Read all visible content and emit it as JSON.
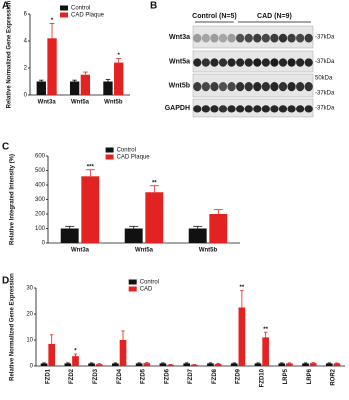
{
  "chart_data": [
    {
      "type": "bar",
      "panel_label": "A",
      "ylabel": "Relative Normalized Gene Expression",
      "categories": [
        "Wnt3a",
        "Wnt5a",
        "Wnt5b"
      ],
      "series": [
        {
          "name": "Control",
          "color": "#111111",
          "values": [
            1,
            1,
            1
          ],
          "errors": [
            0.1,
            0.1,
            0.15
          ],
          "annotations": [
            null,
            null,
            null
          ]
        },
        {
          "name": "CAD Plaque",
          "color": "#e32222",
          "values": [
            4.2,
            1.5,
            2.4
          ],
          "errors": [
            1.1,
            0.2,
            0.3
          ],
          "annotations": [
            "*",
            null,
            "*"
          ]
        }
      ],
      "ylim": [
        0,
        6
      ],
      "yticks": [
        0,
        2,
        4,
        6
      ],
      "legend": "upper center"
    },
    {
      "type": "bar",
      "panel_label": "C",
      "ylabel": "Relative Integrated Intensity (%)",
      "categories": [
        "Wnt3a",
        "Wnt5a",
        "Wnt5b"
      ],
      "series": [
        {
          "name": "Control",
          "color": "#111111",
          "values": [
            100,
            100,
            100
          ],
          "errors": [
            15,
            15,
            15
          ],
          "annotations": [
            null,
            null,
            null
          ]
        },
        {
          "name": "CAD Plaque",
          "color": "#e32222",
          "values": [
            460,
            350,
            200
          ],
          "errors": [
            45,
            45,
            30
          ],
          "annotations": [
            "***",
            "**",
            null
          ]
        }
      ],
      "ylim": [
        0,
        600
      ],
      "yticks": [
        0,
        100,
        200,
        300,
        400,
        500,
        600
      ],
      "legend": "upper center"
    },
    {
      "type": "bar",
      "panel_label": "D",
      "ylabel": "Relative Normalized Gene Expression",
      "categories": [
        "FZD1",
        "FZD2",
        "FZD3",
        "FZD4",
        "FZD5",
        "FZD6",
        "FZD7",
        "FZD8",
        "FZD9",
        "FZD10",
        "LRP5",
        "LRP6",
        "ROR2"
      ],
      "series": [
        {
          "name": "Control",
          "color": "#111111",
          "values": [
            1,
            1,
            1,
            1,
            1,
            1,
            1,
            1,
            1,
            1,
            1,
            1,
            1
          ],
          "errors": [
            0.2,
            0.2,
            0.2,
            0.2,
            0.2,
            0.2,
            0.2,
            0.2,
            0.2,
            0.2,
            0.2,
            0.2,
            0.2
          ],
          "annotations": [
            null,
            null,
            null,
            null,
            null,
            null,
            null,
            null,
            null,
            null,
            null,
            null,
            null
          ]
        },
        {
          "name": "CAD",
          "color": "#e32222",
          "values": [
            8.5,
            3.8,
            0.7,
            10,
            1.1,
            0.5,
            0.5,
            0.8,
            22.5,
            11,
            1,
            1.1,
            1
          ],
          "errors": [
            3.5,
            0.8,
            0.2,
            3.5,
            0.3,
            0.1,
            0.1,
            0.2,
            6.5,
            2,
            0.2,
            0.2,
            0.2
          ],
          "annotations": [
            null,
            "*",
            null,
            null,
            null,
            null,
            null,
            null,
            "**",
            "**",
            null,
            null,
            null
          ]
        }
      ],
      "ylim": [
        0,
        30
      ],
      "yticks": [
        0,
        10,
        20,
        30
      ],
      "xtick_rotation": 90,
      "legend": "upper center"
    }
  ],
  "blot": {
    "panel_label": "B",
    "groups": [
      "Control (N=5)",
      "CAD (N=9)"
    ],
    "rows": [
      {
        "name": "Wnt3a",
        "markers": [
          "-37kDa"
        ]
      },
      {
        "name": "Wnt5a",
        "markers": [
          "-37kDa"
        ]
      },
      {
        "name": "Wnt5b",
        "markers": [
          "50kDa",
          "-37kDa"
        ]
      },
      {
        "name": "GAPDH",
        "markers": [
          "-37kDa"
        ]
      }
    ]
  }
}
